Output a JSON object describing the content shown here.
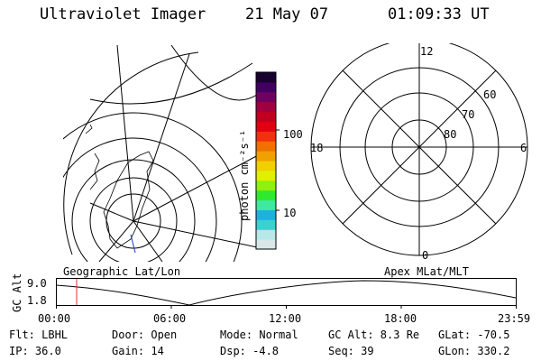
{
  "header": {
    "title": "Ultraviolet Imager",
    "date": "21 May 07",
    "time": "01:09:33 UT"
  },
  "colorbar": {
    "unit_label": "photon cm⁻²s⁻¹",
    "tick_100": "100",
    "tick_10": "10",
    "colors": [
      "#d8e8e8",
      "#b8e8e8",
      "#3cd0d0",
      "#20b0e0",
      "#40e8a0",
      "#30e830",
      "#90f010",
      "#e0f000",
      "#f0d000",
      "#f0a000",
      "#f07000",
      "#f03010",
      "#e00010",
      "#c00020",
      "#a00040",
      "#700060",
      "#400060",
      "#180030"
    ]
  },
  "geo_panel": {
    "label": "Geographic Lat/Lon"
  },
  "polar_panel": {
    "label": "Apex MLat/MLT",
    "mlt_12": "12",
    "mlt_18": "18",
    "mlt_6": "6",
    "mlt_0": "0",
    "lat_60": "60",
    "lat_70": "70",
    "lat_80": "80"
  },
  "altitude_plot": {
    "ylabel": "GC Alt",
    "y_top": "9.0",
    "y_bottom": "1.8",
    "x_ticks": [
      "00:00",
      "06:00",
      "12:00",
      "18:00",
      "23:59"
    ],
    "current_time_color": "#e03030"
  },
  "info": {
    "flt": "Flt: LBHL",
    "ip": "IP: 36.0",
    "door": "Door: Open",
    "gain": "Gain: 14",
    "mode": "Mode: Normal",
    "dsp": "Dsp:   -4.8",
    "gc_alt": "GC Alt: 8.3 Re",
    "seq": "Seq: 39",
    "glat": "GLat: -70.5",
    "glon": "GLon: 330.2"
  }
}
